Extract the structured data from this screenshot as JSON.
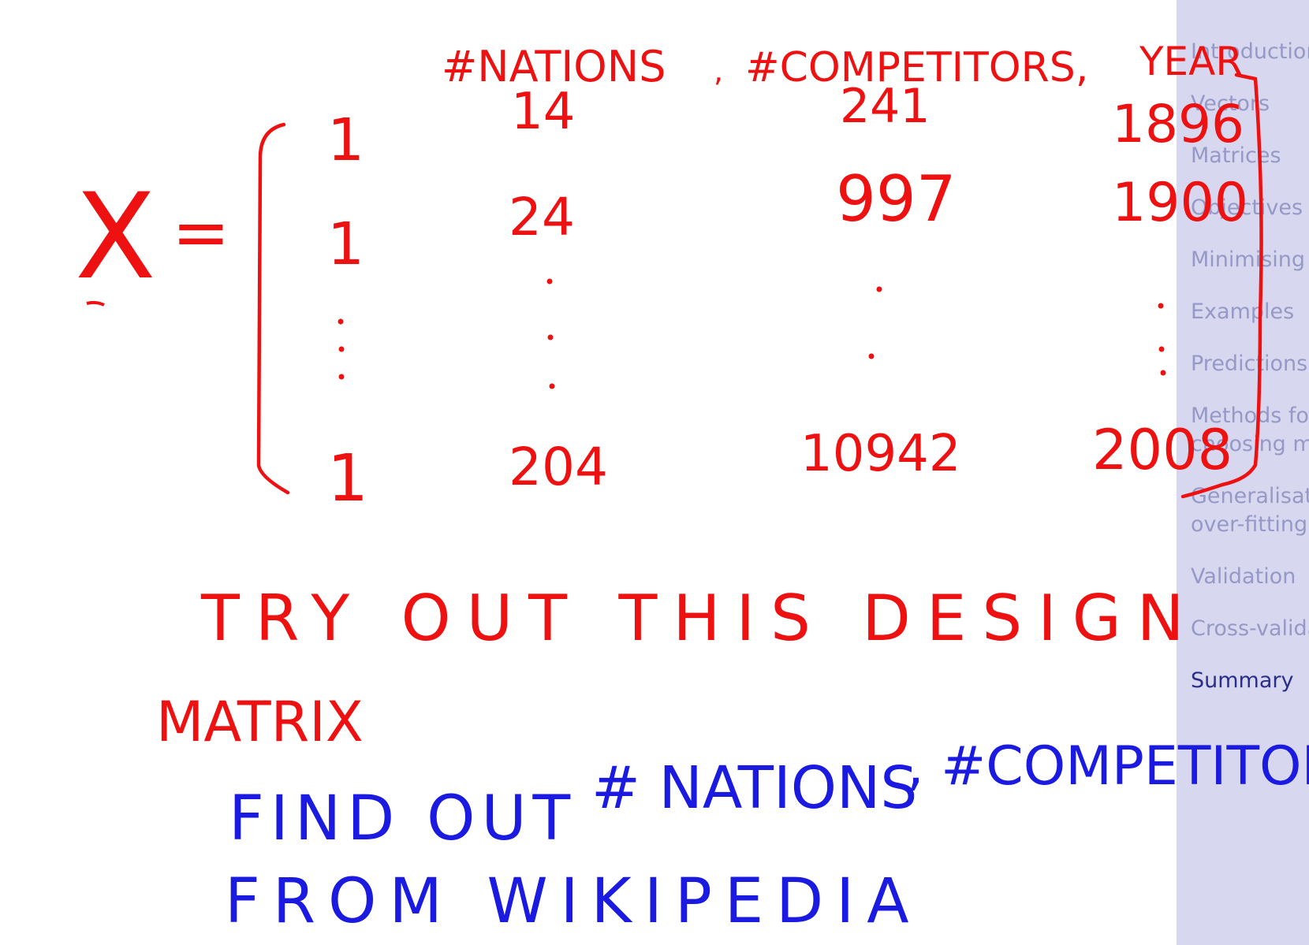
{
  "sidebar": {
    "items": [
      {
        "label": "Introduction",
        "current": false
      },
      {
        "label": "Vectors",
        "current": false
      },
      {
        "label": "Matrices",
        "current": false
      },
      {
        "label": "Objectives",
        "current": false
      },
      {
        "label": "Minimising",
        "current": false
      },
      {
        "label": "Examples",
        "current": false
      },
      {
        "label": "Predictions",
        "current": false
      },
      {
        "label": "Methods for",
        "current": false
      },
      {
        "label": "choosing m",
        "current": false
      },
      {
        "label": "Generalisation",
        "current": false
      },
      {
        "label": "over-fitting",
        "current": false
      },
      {
        "label": "Validation",
        "current": false
      },
      {
        "label": "Cross-validation",
        "current": false
      },
      {
        "label": "Summary",
        "current": true
      }
    ]
  },
  "annotation": {
    "colors": {
      "red": "#ee1111",
      "blue": "#1a1ae0"
    },
    "headers": {
      "nations": "#NATIONS",
      "competitors": "#COMPETITORS,",
      "year": "YEAR"
    },
    "symbol": "X",
    "equals": "=",
    "row1": {
      "bias": "1",
      "nations": "14",
      "competitors": "241",
      "year": "1896"
    },
    "row2": {
      "bias": "1",
      "nations": "24",
      "competitors": "997",
      "year": "1900"
    },
    "row_last": {
      "bias": "1",
      "nations": "204",
      "competitors": "10942",
      "year": "2008"
    },
    "note_red_1": "TRY OUT THIS DESIGN",
    "note_red_2": "MATRIX",
    "note_blue_1a": "FIND OUT",
    "note_blue_1b": "# NATIONS",
    "note_blue_1c": ", #COMPETITORS",
    "note_blue_2": "FROM WIKIPEDIA"
  }
}
